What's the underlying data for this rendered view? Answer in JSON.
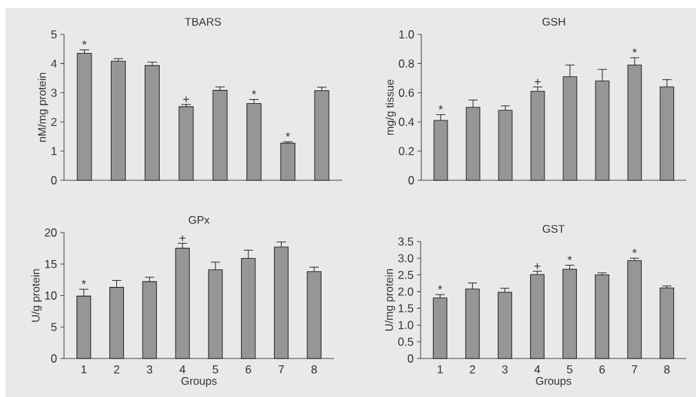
{
  "chart_data": [
    {
      "type": "bar",
      "title": "TBARS",
      "ylabel": "nM/mg protein",
      "categories": [
        "1",
        "2",
        "3",
        "4",
        "5",
        "6",
        "7",
        "8"
      ],
      "tick_labels": "y",
      "values": [
        4.35,
        4.08,
        3.93,
        2.52,
        3.08,
        2.63,
        1.27,
        3.07
      ],
      "errors": [
        [
          4.35,
          4.47
        ],
        [
          4.08,
          4.17
        ],
        [
          3.93,
          4.05
        ],
        [
          2.52,
          2.6
        ],
        [
          3.08,
          3.2
        ],
        [
          2.63,
          2.77
        ],
        [
          1.27,
          1.32
        ],
        [
          3.07,
          3.19
        ]
      ],
      "color": "#959697",
      "ylim": [
        0,
        5
      ],
      "yticks": [
        0,
        1,
        2,
        3,
        4,
        5
      ],
      "annotations": [
        {
          "text": "*",
          "x": "1",
          "y": 4.47
        },
        {
          "text": "+",
          "x": "4",
          "y": 2.6
        },
        {
          "text": "*",
          "x": "6",
          "y": 2.77
        },
        {
          "text": "*",
          "x": "7",
          "y": 1.32
        }
      ]
    },
    {
      "type": "bar",
      "title": "GSH",
      "ylabel": "mg/g  tissue",
      "categories": [
        "1",
        "2",
        "3",
        "4",
        "5",
        "6",
        "7",
        "8"
      ],
      "tick_labels": "y",
      "values": [
        0.41,
        0.5,
        0.48,
        0.61,
        0.71,
        0.68,
        0.79,
        0.64
      ],
      "errors": [
        [
          0.41,
          0.45
        ],
        [
          0.5,
          0.55
        ],
        [
          0.48,
          0.51
        ],
        [
          0.61,
          0.64
        ],
        [
          0.71,
          0.79
        ],
        [
          0.68,
          0.76
        ],
        [
          0.79,
          0.84
        ],
        [
          0.64,
          0.69
        ]
      ],
      "color": "#959697",
      "ylim": [
        0,
        1
      ],
      "yticks": [
        0,
        {
          "value": 0.2,
          "label": "0.2"
        },
        {
          "value": 0.4,
          "label": "0.4"
        },
        {
          "value": 0.6,
          "label": "0.6"
        },
        {
          "value": 0.8,
          "label": "0.8"
        },
        {
          "value": 1,
          "label": "1.0"
        }
      ],
      "annotations": [
        {
          "text": "*",
          "x": "1",
          "y": 0.45
        },
        {
          "text": "+",
          "x": "4",
          "y": 0.64
        },
        {
          "text": "*",
          "x": "7",
          "y": 0.84
        }
      ]
    },
    {
      "type": "bar",
      "title": "GPx",
      "ylabel": "U/g protein",
      "xlabel": "Groups",
      "categories": [
        "1",
        "2",
        "3",
        "4",
        "5",
        "6",
        "7",
        "8"
      ],
      "values": [
        9.9,
        11.3,
        12.2,
        17.5,
        14.1,
        15.9,
        17.7,
        13.8
      ],
      "errors": [
        [
          9.9,
          11.0
        ],
        [
          11.3,
          12.4
        ],
        [
          12.2,
          12.9
        ],
        [
          17.5,
          18.3
        ],
        [
          14.1,
          15.3
        ],
        [
          15.9,
          17.2
        ],
        [
          17.7,
          18.5
        ],
        [
          13.8,
          14.5
        ]
      ],
      "color": "#959697",
      "ylim": [
        0,
        20
      ],
      "yticks": [
        0,
        5,
        10,
        15,
        20
      ],
      "annotations": [
        {
          "text": "*",
          "x": "1",
          "y": 11.0
        },
        {
          "text": "+",
          "x": "4",
          "y": 18.3
        }
      ]
    },
    {
      "type": "bar",
      "title": "GST",
      "ylabel": "U/mg protein",
      "xlabel": "Groups",
      "categories": [
        "1",
        "2",
        "3",
        "4",
        "5",
        "6",
        "7",
        "8"
      ],
      "values": [
        1.81,
        2.08,
        1.98,
        2.51,
        2.67,
        2.5,
        2.93,
        2.11
      ],
      "errors": [
        [
          1.81,
          1.91
        ],
        [
          2.08,
          2.26
        ],
        [
          1.98,
          2.1
        ],
        [
          2.51,
          2.61
        ],
        [
          2.67,
          2.79
        ],
        [
          2.5,
          2.56
        ],
        [
          2.93,
          3.0
        ],
        [
          2.11,
          2.17
        ]
      ],
      "color": "#959697",
      "ylim": [
        0,
        3.5
      ],
      "yticks": [
        0,
        {
          "value": 0.5,
          "label": "0.5"
        },
        {
          "value": 1,
          "label": "1.0"
        },
        {
          "value": 1.5,
          "label": "1.5"
        },
        {
          "value": 2,
          "label": "2.0"
        },
        {
          "value": 2.5,
          "label": "2.5"
        },
        {
          "value": 3,
          "label": "3.0"
        },
        {
          "value": 3.5,
          "label": "3.5"
        }
      ],
      "annotations": [
        {
          "text": "*",
          "x": "1",
          "y": 1.91
        },
        {
          "text": "+",
          "x": "4",
          "y": 2.61
        },
        {
          "text": "*",
          "x": "5",
          "y": 2.79
        },
        {
          "text": "*",
          "x": "7",
          "y": 3.0
        }
      ]
    }
  ]
}
